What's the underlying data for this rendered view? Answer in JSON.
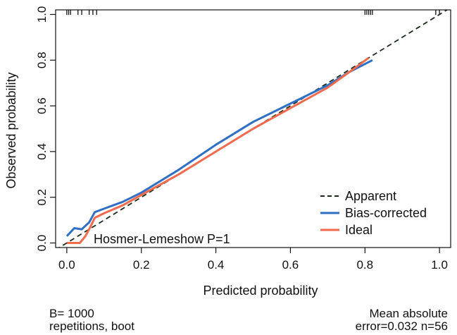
{
  "chart_data": {
    "type": "line",
    "xlabel": "Predicted probability",
    "ylabel": "Observed probability",
    "xlim": [
      -0.03,
      1.03
    ],
    "ylim": [
      -0.02,
      1.02
    ],
    "x_ticks": [
      "0.0",
      "0.2",
      "0.4",
      "0.6",
      "0.8",
      "1.0"
    ],
    "y_ticks": [
      "0.0",
      "0.2",
      "0.4",
      "0.6",
      "0.8",
      "1.0"
    ],
    "grid": false,
    "legend_position": "bottom-right",
    "series": [
      {
        "name": "Apparent",
        "style": "dashed",
        "color": "#1a2a1a",
        "x": [
          -0.03,
          1.03
        ],
        "y": [
          -0.03,
          1.03
        ]
      },
      {
        "name": "Bias-corrected",
        "style": "solid",
        "color": "#2f6fc4",
        "x": [
          0.0,
          0.02,
          0.04,
          0.06,
          0.075,
          0.1,
          0.15,
          0.2,
          0.3,
          0.4,
          0.5,
          0.6,
          0.7,
          0.76,
          0.82
        ],
        "y": [
          0.03,
          0.065,
          0.06,
          0.09,
          0.135,
          0.15,
          0.18,
          0.22,
          0.32,
          0.43,
          0.53,
          0.61,
          0.69,
          0.75,
          0.8
        ]
      },
      {
        "name": "Ideal",
        "style": "solid",
        "color": "#f06a4e",
        "x": [
          0.0,
          0.035,
          0.05,
          0.06,
          0.075,
          0.1,
          0.15,
          0.2,
          0.3,
          0.4,
          0.5,
          0.6,
          0.7,
          0.76,
          0.81
        ],
        "y": [
          0.0,
          0.0,
          0.03,
          0.06,
          0.11,
          0.13,
          0.165,
          0.21,
          0.3,
          0.4,
          0.5,
          0.59,
          0.68,
          0.75,
          0.81
        ]
      }
    ],
    "rug_ticks": [
      0.0,
      0.005,
      0.01,
      0.03,
      0.04,
      0.06,
      0.07,
      0.08,
      0.8,
      0.805,
      0.81,
      0.815,
      0.82,
      0.99,
      1.0
    ],
    "annotation": "Hosmer-Lemeshow P=1",
    "footer_left": [
      "B= 1000",
      "repetitions, boot"
    ],
    "footer_right": [
      "Mean absolute",
      "error=0.032 n=56"
    ]
  }
}
